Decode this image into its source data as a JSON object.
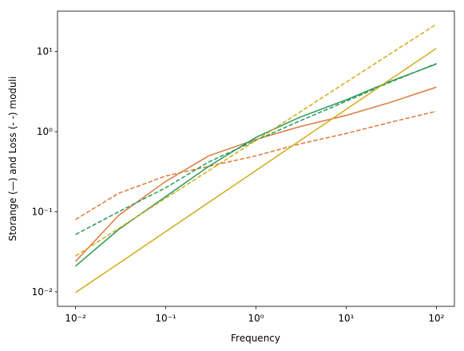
{
  "chart_data": {
    "type": "line",
    "xlabel": "Frequency",
    "ylabel": "Storange (—) and Loss (- -) moduli",
    "x": [
      0.01,
      0.03,
      0.1,
      0.3,
      1,
      3,
      10,
      30,
      100
    ],
    "series": [
      {
        "color": "#dd7a3b",
        "dashed": false,
        "values": [
          0.024,
          0.09,
          0.24,
          0.5,
          0.8,
          1.15,
          1.6,
          2.3,
          3.6
        ]
      },
      {
        "color": "#dd7a3b",
        "dashed": true,
        "values": [
          0.08,
          0.17,
          0.28,
          0.37,
          0.5,
          0.7,
          0.95,
          1.3,
          1.8
        ]
      },
      {
        "color": "#2a9a5a",
        "dashed": false,
        "values": [
          0.021,
          0.06,
          0.155,
          0.37,
          0.85,
          1.5,
          2.5,
          4.2,
          7
        ]
      },
      {
        "color": "#2a9a5a",
        "dashed": true,
        "values": [
          0.052,
          0.1,
          0.2,
          0.42,
          0.78,
          1.35,
          2.4,
          4.1,
          7.1
        ]
      },
      {
        "color": "#d4aa1c",
        "dashed": false,
        "values": [
          0.0098,
          0.0226,
          0.0567,
          0.131,
          0.328,
          0.76,
          1.9,
          4.4,
          11
        ]
      },
      {
        "color": "#d4aa1c",
        "dashed": true,
        "values": [
          0.028,
          0.062,
          0.148,
          0.327,
          0.78,
          1.73,
          4.15,
          9.2,
          22
        ]
      }
    ],
    "xscale": "log",
    "yscale": "log",
    "xlim": [
      0.00631,
      158.5
    ],
    "ylim": [
      0.0066,
      32
    ],
    "xticks": [
      {
        "value": 0.01,
        "label": "10⁻²"
      },
      {
        "value": 0.1,
        "label": "10⁻¹"
      },
      {
        "value": 1,
        "label": "10⁰"
      },
      {
        "value": 10,
        "label": "10¹"
      },
      {
        "value": 100,
        "label": "10²"
      }
    ],
    "yticks": [
      {
        "value": 0.01,
        "label": "10⁻²"
      },
      {
        "value": 0.1,
        "label": "10⁻¹"
      },
      {
        "value": 1,
        "label": "10⁰"
      },
      {
        "value": 10,
        "label": "10¹"
      }
    ]
  }
}
